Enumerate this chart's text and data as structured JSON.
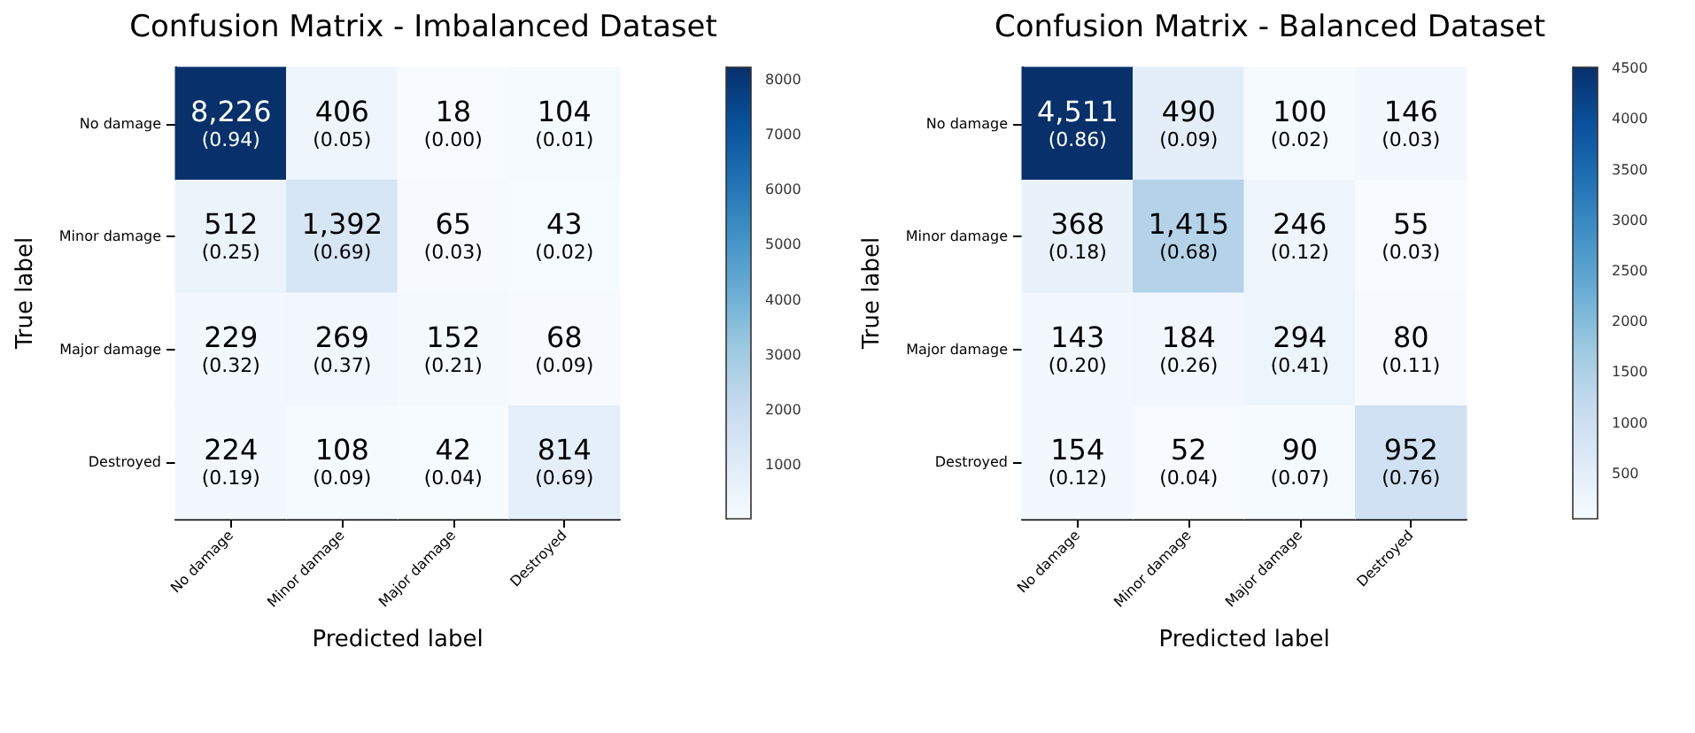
{
  "chart_data": [
    {
      "type": "heatmap",
      "title": "Confusion Matrix - Imbalanced Dataset",
      "xlabel": "Predicted label",
      "ylabel": "True label",
      "categories": [
        "No damage",
        "Minor damage",
        "Major damage",
        "Destroyed"
      ],
      "y_categories": [
        "No damage",
        "Minor damage",
        "Major damage",
        "Destroyed"
      ],
      "cells": [
        [
          8226,
          406,
          18,
          104
        ],
        [
          512,
          1392,
          65,
          43
        ],
        [
          229,
          269,
          152,
          68
        ],
        [
          224,
          108,
          42,
          814
        ]
      ],
      "cell_labels": [
        [
          "8,226\n(0.94)",
          "406\n(0.05)",
          "18\n(0.00)",
          "104\n(0.01)"
        ],
        [
          "512\n(0.25)",
          "1,392\n(0.69)",
          "65\n(0.03)",
          "43\n(0.02)"
        ],
        [
          "229\n(0.32)",
          "269\n(0.37)",
          "152\n(0.21)",
          "68\n(0.09)"
        ],
        [
          "224\n(0.19)",
          "108\n(0.09)",
          "42\n(0.04)",
          "814\n(0.69)"
        ]
      ],
      "clim": [
        18,
        8226
      ],
      "cticks": [
        1000,
        2000,
        3000,
        4000,
        5000,
        6000,
        7000,
        8000
      ]
    },
    {
      "type": "heatmap",
      "title": "Confusion Matrix - Balanced Dataset",
      "xlabel": "Predicted label",
      "ylabel": "True label",
      "categories": [
        "No damage",
        "Minor damage",
        "Major damage",
        "Destroyed"
      ],
      "y_categories": [
        "No damage",
        "Minor damage",
        "Major damage",
        "Destroyed"
      ],
      "cells": [
        [
          4511,
          490,
          100,
          146
        ],
        [
          368,
          1415,
          246,
          55
        ],
        [
          143,
          184,
          294,
          80
        ],
        [
          154,
          52,
          90,
          952
        ]
      ],
      "cell_labels": [
        [
          "4,511\n(0.86)",
          "490\n(0.09)",
          "100\n(0.02)",
          "146\n(0.03)"
        ],
        [
          "368\n(0.18)",
          "1,415\n(0.68)",
          "246\n(0.12)",
          "55\n(0.03)"
        ],
        [
          "143\n(0.20)",
          "184\n(0.26)",
          "294\n(0.41)",
          "80\n(0.11)"
        ],
        [
          "154\n(0.12)",
          "52\n(0.04)",
          "90\n(0.07)",
          "952\n(0.76)"
        ]
      ],
      "clim": [
        52,
        4511
      ],
      "cticks": [
        500,
        1000,
        1500,
        2000,
        2500,
        3000,
        3500,
        4000,
        4500
      ]
    }
  ]
}
